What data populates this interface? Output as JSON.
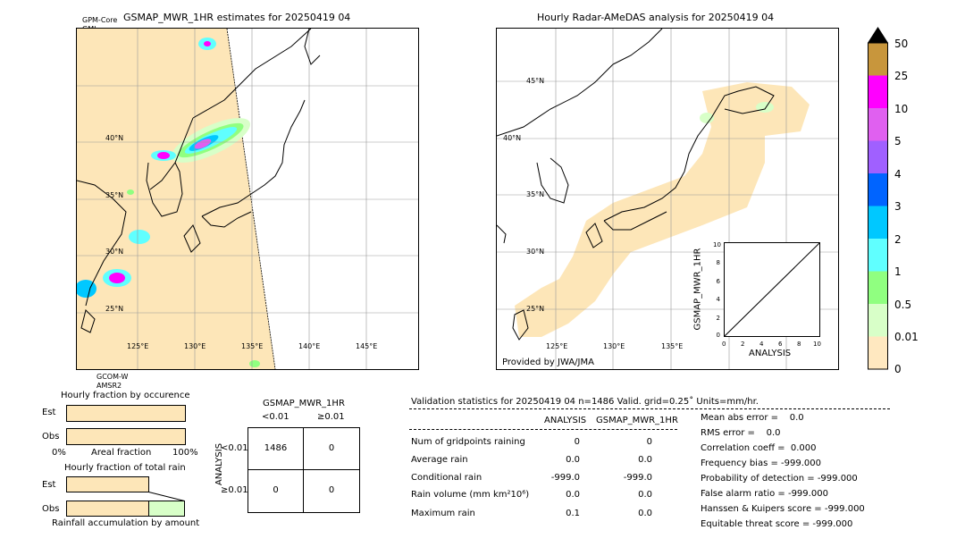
{
  "left_map": {
    "title": "GSMAP_MWR_1HR estimates for 20250419 04",
    "sat_top_1": "GPM-Core",
    "sat_top_2": "GMI",
    "sat_bottom_1": "GCOM-W",
    "sat_bottom_2": "AMSR2",
    "lat_labels": [
      "40°N",
      "35°N",
      "30°N",
      "25°N"
    ],
    "lon_labels": [
      "125°E",
      "130°E",
      "135°E",
      "140°E",
      "145°E"
    ]
  },
  "right_map": {
    "title": "Hourly Radar-AMeDAS analysis for 20250419 04",
    "lat_labels": [
      "45°N",
      "40°N",
      "35°N",
      "30°N",
      "25°N"
    ],
    "lon_labels": [
      "125°E",
      "130°E",
      "135°E"
    ],
    "credit": "Provided by JWA/JMA"
  },
  "scatter": {
    "ylabel": "GSMAP_MWR_1HR",
    "xlabel": "ANALYSIS",
    "ticks": [
      "0",
      "2",
      "4",
      "6",
      "8",
      "10"
    ]
  },
  "colorbar": {
    "labels": [
      "50",
      "25",
      "10",
      "5",
      "4",
      "3",
      "2",
      "1",
      "0.5",
      "0.01",
      "0"
    ],
    "colors": [
      "#c8963c",
      "#ff00ff",
      "#e060f0",
      "#a060ff",
      "#0064ff",
      "#00c8ff",
      "#60ffff",
      "#90ff80",
      "#d8ffc8",
      "#ffe8c0"
    ],
    "over_color": "#000000"
  },
  "occurrence": {
    "title": "Hourly fraction by occurence",
    "row_est": "Est",
    "row_obs": "Obs",
    "x_left": "0%",
    "x_mid": "Areal fraction",
    "x_right": "100%",
    "est_fraction": 1.0,
    "obs_fraction": 1.0
  },
  "total_rain": {
    "title": "Hourly fraction of total rain",
    "row_est": "Est",
    "row_obs": "Obs",
    "footer": "Rainfall accumulation by amount"
  },
  "contingency": {
    "title": "GSMAP_MWR_1HR",
    "col1": "<0.01",
    "col2": "≥0.01",
    "ylabel": "ANALYSIS",
    "row1": "<0.01",
    "row2": "≥0.01",
    "cells": [
      "1486",
      "0",
      "0",
      "0"
    ]
  },
  "validation": {
    "header": "Validation statistics for 20250419 04  n=1486 Valid. grid=0.25˚ Units=mm/hr.",
    "col_a": "ANALYSIS",
    "col_b": "GSMAP_MWR_1HR",
    "rows": [
      {
        "label": "Num of gridpoints raining",
        "a": "0",
        "b": "0"
      },
      {
        "label": "Average rain",
        "a": "0.0",
        "b": "0.0"
      },
      {
        "label": "Conditional rain",
        "a": "-999.0",
        "b": "-999.0"
      },
      {
        "label": "Rain volume (mm km²10⁶)",
        "a": "0.0",
        "b": "0.0"
      },
      {
        "label": "Maximum rain",
        "a": "0.1",
        "b": "0.0"
      }
    ],
    "scores": [
      "Mean abs error =    0.0",
      "RMS error =    0.0",
      "Correlation coeff =  0.000",
      "Frequency bias = -999.000",
      "Probability of detection = -999.000",
      "False alarm ratio = -999.000",
      "Hanssen & Kuipers score = -999.000",
      "Equitable threat score = -999.000"
    ]
  },
  "chart_data": [
    {
      "type": "heatmap",
      "title": "GSMAP_MWR_1HR estimates for 20250419 04",
      "units": "mm/hr",
      "levels": [
        0,
        0.01,
        0.5,
        1,
        2,
        3,
        4,
        5,
        10,
        25,
        50
      ],
      "lon_ticks": [
        "125°E",
        "130°E",
        "135°E",
        "140°E",
        "145°E"
      ],
      "lat_ticks": [
        "40°N",
        "35°N",
        "30°N",
        "25°N"
      ]
    },
    {
      "type": "heatmap",
      "title": "Hourly Radar-AMeDAS analysis for 20250419 04",
      "units": "mm/hr",
      "levels": [
        0,
        0.01,
        0.5,
        1,
        2,
        3,
        4,
        5,
        10,
        25,
        50
      ]
    },
    {
      "type": "scatter",
      "xlabel": "ANALYSIS",
      "ylabel": "GSMAP_MWR_1HR",
      "xlim": [
        0,
        10
      ],
      "ylim": [
        0,
        10
      ],
      "x": [],
      "y": []
    },
    {
      "type": "table",
      "title": "GSMAP_MWR_1HR",
      "columns": [
        "<0.01",
        "≥0.01"
      ],
      "rows": [
        "<0.01",
        "≥0.01"
      ],
      "values": [
        [
          1486,
          0
        ],
        [
          0,
          0
        ]
      ]
    }
  ]
}
